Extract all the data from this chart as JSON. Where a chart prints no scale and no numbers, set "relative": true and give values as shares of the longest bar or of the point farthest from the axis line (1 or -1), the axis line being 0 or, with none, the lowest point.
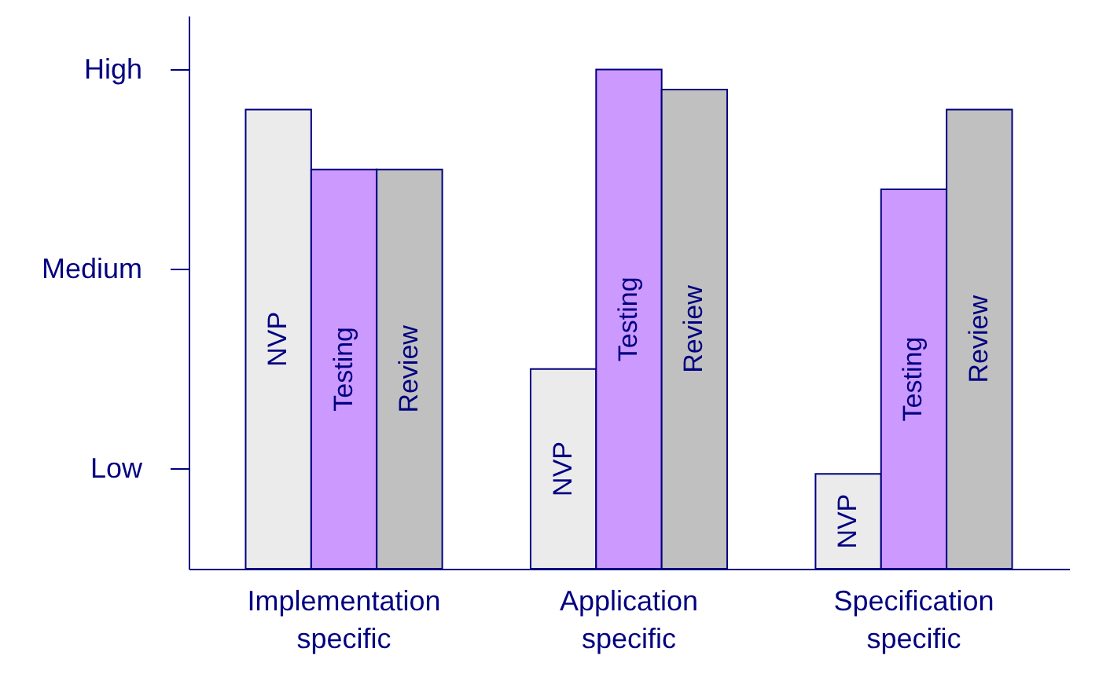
{
  "chart_data": {
    "type": "bar",
    "relative": true,
    "categories": [
      "Implementation specific",
      "Application specific",
      "Specification specific"
    ],
    "series": [
      {
        "name": "NVP",
        "color": "#ebebeb",
        "values": [
          0.92,
          0.4,
          0.19
        ]
      },
      {
        "name": "Testing",
        "color": "#cc99ff",
        "values": [
          0.8,
          1,
          0.76
        ]
      },
      {
        "name": "Review",
        "color": "#c0c0c0",
        "values": [
          0.8,
          0.96,
          0.92
        ]
      }
    ],
    "annotations": [
      "Low",
      "Medium",
      "High"
    ]
  }
}
